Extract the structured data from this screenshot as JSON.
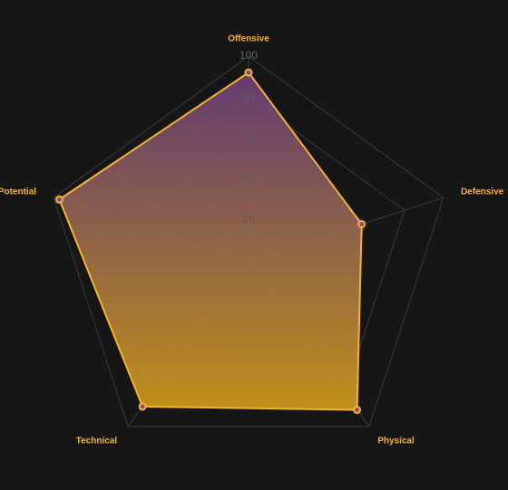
{
  "colors": {
    "background": "#161616",
    "accent": "#f4b42e",
    "gradient_top": "#6b3f7a",
    "gradient_bottom": "#c9961a",
    "point_fill": "#8a4a8c"
  },
  "chart_data": {
    "type": "radar",
    "categories": [
      "Offensive",
      "Defensive",
      "Physical",
      "Technical",
      "Potential"
    ],
    "rlim": [
      0,
      100
    ],
    "ticks": [
      "20",
      "40",
      "60",
      "80",
      "100"
    ],
    "tick_values": [
      20,
      40,
      60,
      80,
      100
    ],
    "grid": true,
    "legend": "none",
    "series": [
      {
        "values": [
          92,
          58,
          90,
          88,
          97
        ]
      }
    ]
  }
}
